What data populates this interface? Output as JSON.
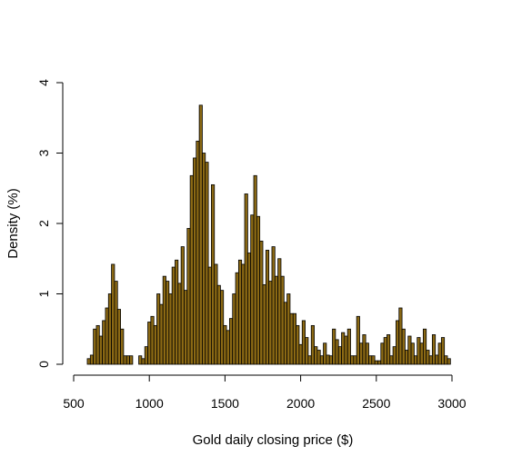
{
  "chart_data": {
    "type": "histogram",
    "title": "",
    "xlabel": "Gold daily closing price ($)",
    "ylabel": "Density (%)",
    "xlim": [
      500,
      3100
    ],
    "ylim": [
      0,
      4
    ],
    "xticks": [
      500,
      1000,
      1500,
      2000,
      2500,
      3000
    ],
    "yticks": [
      0,
      1,
      2,
      3,
      4
    ],
    "grid": false,
    "colors": {
      "bar_fill": "#8B6914",
      "bar_stroke": "#000000",
      "axis": "#000000"
    },
    "bin_width": 20,
    "bins_start": 590,
    "values": [
      0.08,
      0.13,
      0.5,
      0.55,
      0.4,
      0.62,
      0.8,
      1.0,
      1.42,
      1.18,
      0.78,
      0.5,
      0.12,
      0.12,
      0.12,
      0,
      0,
      0.12,
      0.08,
      0.25,
      0.6,
      0.68,
      0.55,
      1.0,
      0.85,
      1.25,
      1.18,
      1.0,
      1.38,
      1.48,
      1.15,
      1.67,
      1.05,
      1.93,
      2.68,
      2.93,
      3.17,
      3.68,
      3.0,
      2.87,
      1.38,
      2.55,
      1.42,
      1.12,
      1.05,
      0.55,
      0.48,
      0.65,
      1.0,
      1.3,
      1.48,
      1.42,
      2.42,
      1.58,
      2.12,
      2.68,
      2.1,
      1.75,
      1.13,
      1.62,
      1.18,
      1.67,
      1.25,
      1.5,
      1.25,
      0.88,
      1.0,
      0.72,
      0.72,
      0.55,
      0.28,
      0.62,
      0.38,
      0.12,
      0.55,
      0.25,
      0.2,
      0.12,
      0.3,
      0.13,
      0.12,
      0.5,
      0.35,
      0.25,
      0.45,
      0.4,
      0.5,
      0.12,
      0.12,
      0.68,
      0.3,
      0.42,
      0.3,
      0.12,
      0.12,
      0.05,
      0.05,
      0.3,
      0.38,
      0.42,
      0.12,
      0.25,
      0.62,
      0.8,
      0.5,
      0.2,
      0.4,
      0.3,
      0.12,
      0.38,
      0.3,
      0.5,
      0.2,
      0.12,
      0.42,
      0.13,
      0.3,
      0.38,
      0.12,
      0.08
    ]
  }
}
